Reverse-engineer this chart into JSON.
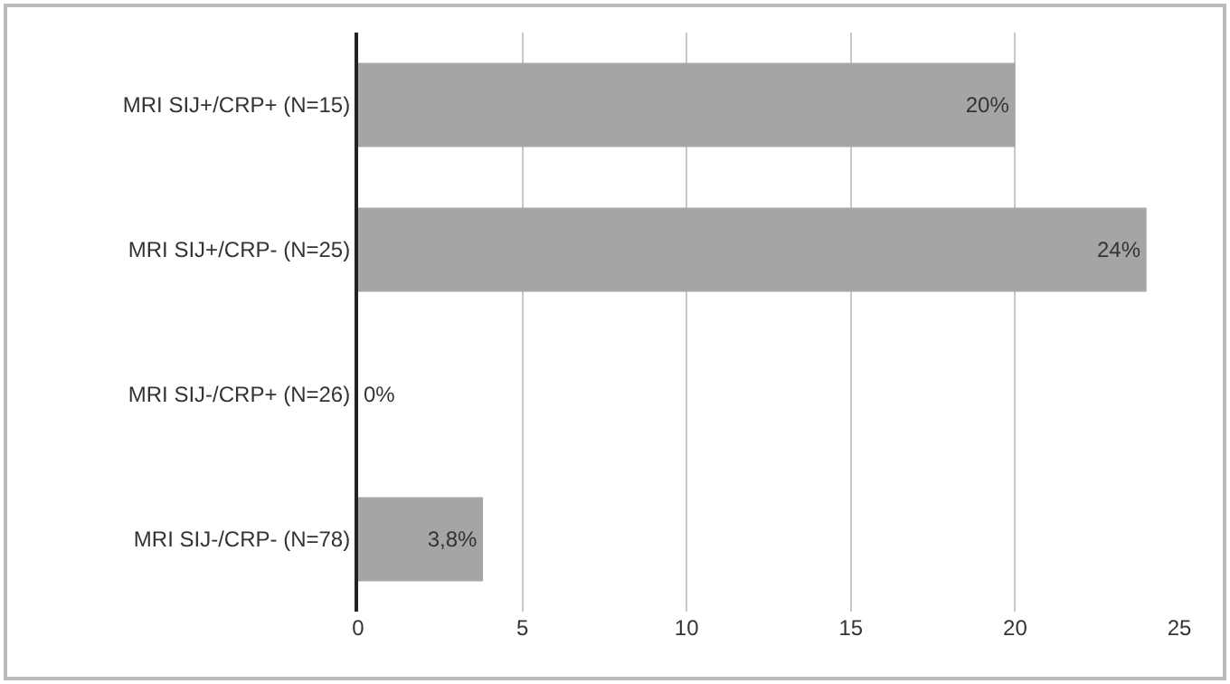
{
  "chart_data": {
    "type": "bar",
    "orientation": "horizontal",
    "categories": [
      "MRI SIJ+/CRP+ (N=15)",
      "MRI SIJ+/CRP- (N=25)",
      "MRI SIJ-/CRP+ (N=26)",
      "MRI SIJ-/CRP- (N=78)"
    ],
    "values": [
      20,
      24,
      0,
      3.8
    ],
    "value_labels": [
      "20%",
      "24%",
      "0%",
      "3,8%"
    ],
    "color": "#a5a5a5",
    "xlim": [
      0,
      25
    ],
    "xticks": [
      0,
      5,
      10,
      15,
      20,
      25
    ],
    "grid": "x"
  }
}
